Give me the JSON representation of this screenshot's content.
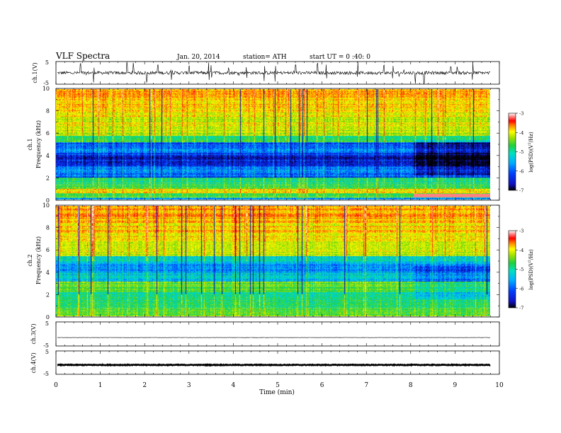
{
  "header": {
    "title": "VLF  Spectra",
    "date": "Jan. 20, 2014",
    "station": "station= ATH",
    "start": "start  UT =   0 :40: 0"
  },
  "chart_data": [
    {
      "type": "line",
      "panel": "ch1-waveform",
      "ylabel": "ch.1(V)",
      "ylim": [
        -5,
        5
      ],
      "yticks": [
        "5",
        "-5"
      ],
      "xlim": [
        0,
        10
      ],
      "data_xrange": [
        0,
        9.8
      ],
      "baseline": 0,
      "spike_times": [
        0.55,
        0.85,
        1.6,
        1.75,
        2.05,
        2.3,
        2.6,
        3.0,
        3.45,
        3.5,
        3.9,
        4.3,
        4.7,
        4.95,
        5.4,
        5.9,
        6.1,
        6.8,
        7.4,
        7.6,
        8.1,
        8.3,
        8.9,
        9.05,
        9.4
      ]
    },
    {
      "type": "heatmap",
      "panel": "ch1-spectrogram",
      "ylabel": "ch.1\nFrequency (kHz)",
      "ylim": [
        0,
        10
      ],
      "yticks": [
        "0",
        "2",
        "4",
        "6",
        "8",
        "10"
      ],
      "xlim": [
        0,
        10
      ],
      "data_xrange": [
        0,
        9.8
      ],
      "colorbar": {
        "label": "log(PSD)(V²/Hz)",
        "range": [
          -7,
          -3
        ],
        "ticks": [
          "-3",
          "-4",
          "-5",
          "-6",
          "-7"
        ]
      },
      "lower_band_kHz": [
        0.6,
        1.0
      ],
      "quiet_band_kHz": [
        2.0,
        5.2
      ],
      "strong_band_kHz": [
        0.2,
        0.6
      ]
    },
    {
      "type": "heatmap",
      "panel": "ch2-spectrogram",
      "ylabel": "ch.2\nFrequency (kHz)",
      "ylim": [
        0,
        10
      ],
      "yticks": [
        "0",
        "2",
        "4",
        "6",
        "8",
        "10"
      ],
      "xlim": [
        0,
        10
      ],
      "data_xrange": [
        0,
        9.8
      ],
      "colorbar": {
        "label": "log(PSD)(V²/Hz)",
        "range": [
          -7,
          -3
        ],
        "ticks": [
          "-3",
          "-4",
          "-5",
          "-6",
          "-7"
        ]
      },
      "quiet_band_kHz": [
        3.2,
        5.2
      ]
    },
    {
      "type": "line",
      "panel": "ch3-waveform",
      "ylabel": "ch.3(V)",
      "ylim": [
        -5,
        5
      ],
      "yticks": [
        "5",
        "-5"
      ],
      "xlim": [
        0,
        10
      ],
      "data_xrange": [
        0,
        9.8
      ],
      "baseline": -1.5
    },
    {
      "type": "line",
      "panel": "ch4-waveform",
      "ylabel": "ch.4(V)",
      "ylim": [
        -5,
        5
      ],
      "yticks": [
        "5",
        "-5"
      ],
      "xlim": [
        0,
        10
      ],
      "data_xrange": [
        0,
        9.8
      ],
      "baseline": -1.0
    }
  ],
  "xaxis": {
    "label": "Time  (min)",
    "ticks": [
      "0",
      "1",
      "2",
      "3",
      "4",
      "5",
      "6",
      "7",
      "8",
      "9",
      "10"
    ]
  },
  "colors": {
    "colormap": [
      "#000000",
      "#1010c0",
      "#0040ff",
      "#00b0ff",
      "#00e0c0",
      "#20d040",
      "#a0e000",
      "#ffff00",
      "#ff8000",
      "#ff0000",
      "#ff9090",
      "#ffffff"
    ]
  }
}
